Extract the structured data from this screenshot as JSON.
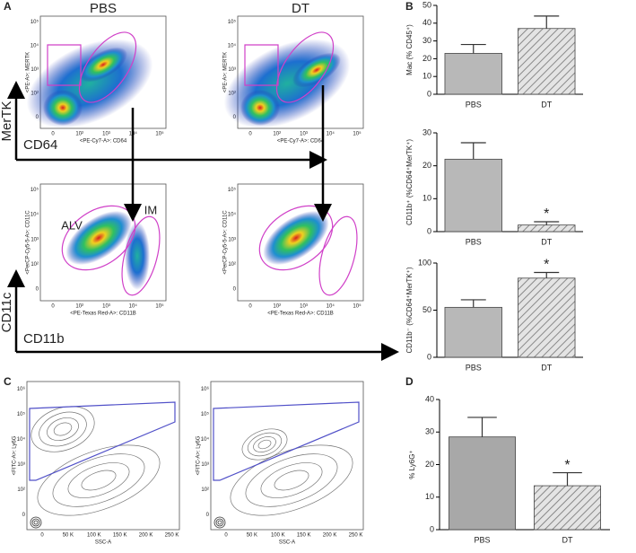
{
  "chart_data": [
    {
      "type": "bar",
      "ylabel": "Mac (% CD45⁺)",
      "categories": [
        "PBS",
        "DT"
      ],
      "values": [
        23,
        37
      ],
      "errors": [
        5,
        7
      ],
      "hatched": [
        false,
        true
      ],
      "color": "#b8b8b8",
      "ylim": [
        0,
        50
      ],
      "yticks": [
        0,
        10,
        20,
        30,
        40,
        50
      ]
    },
    {
      "type": "bar",
      "ylabel": "CD11b⁺ (%CD64⁺MerTK⁺)",
      "categories": [
        "PBS",
        "DT"
      ],
      "values": [
        22,
        2
      ],
      "errors": [
        5,
        1
      ],
      "hatched": [
        false,
        true
      ],
      "color": "#b8b8b8",
      "ylim": [
        0,
        30
      ],
      "yticks": [
        0,
        10,
        20,
        30
      ],
      "annotations": [
        {
          "text": "*",
          "x": "DT"
        }
      ]
    },
    {
      "type": "bar",
      "ylabel": "CD11b⁻ (%CD64⁺MerTK⁺)",
      "categories": [
        "PBS",
        "DT"
      ],
      "values": [
        53,
        84
      ],
      "errors": [
        8,
        6
      ],
      "hatched": [
        false,
        true
      ],
      "color": "#b8b8b8",
      "ylim": [
        0,
        100
      ],
      "yticks": [
        0,
        50,
        100
      ],
      "annotations": [
        {
          "text": "*",
          "x": "DT"
        }
      ]
    },
    {
      "type": "bar",
      "ylabel": "% Ly6G⁺",
      "categories": [
        "PBS",
        "DT"
      ],
      "values": [
        28.5,
        13.5
      ],
      "errors": [
        6,
        4
      ],
      "hatched": [
        false,
        true
      ],
      "color": "#a8a8a8",
      "ylim": [
        0,
        40
      ],
      "yticks": [
        0,
        10,
        20,
        30,
        40
      ],
      "annotations": [
        {
          "text": "*",
          "x": "DT"
        }
      ]
    }
  ],
  "panel_labels": [
    "A",
    "B",
    "C",
    "D"
  ],
  "flow": {
    "panel_a": {
      "conditions": [
        "PBS",
        "DT"
      ],
      "top_x_label": "<PE-Cy7-A>: CD64",
      "top_y_label": "<PE-A>: MERTK",
      "bottom_x_label": "<PE-Texas Red-A>: CD11B",
      "bottom_y_label": "<PerCP-Cy5-5-A>: CD11C",
      "axis_ticks": [
        "0",
        "10²",
        "10³",
        "10⁴",
        "10⁵"
      ],
      "big_axes": [
        "MerTK",
        "CD64",
        "CD11c",
        "CD11b"
      ],
      "gates": [
        "ALV",
        "IM"
      ]
    },
    "panel_c": {
      "x_label": "SSC-A",
      "y_label": "<FITC-A>: Ly6G",
      "x_ticks": [
        "0",
        "50 K",
        "100 K",
        "150 K",
        "200 K",
        "250 K"
      ],
      "y_ticks": [
        "0",
        "10²",
        "10³",
        "10⁴",
        "10⁵",
        "10⁶"
      ]
    }
  }
}
